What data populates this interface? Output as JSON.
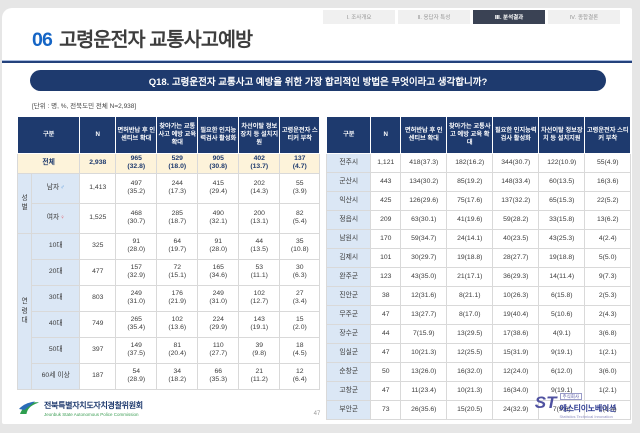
{
  "nav": {
    "items": [
      {
        "label": "Ⅰ. 조사개요",
        "active": false
      },
      {
        "label": "Ⅱ. 응답자 특성",
        "active": false
      },
      {
        "label": "Ⅲ. 분석결과",
        "active": true
      },
      {
        "label": "Ⅳ. 종합결론",
        "active": false
      }
    ]
  },
  "header": {
    "section_number": "06",
    "title": "고령운전자 교통사고예방"
  },
  "question": "Q18. 고령운전자 교통사고 예방을 위한 가장 합리적인 방법은 무엇이라고 생각합니까?",
  "unit_note": "[단위 : 명, %, 전북도민 전체 N=2,938]",
  "columns": {
    "category": "구분",
    "n": "N",
    "options": [
      "면허반납 후 인센티브 확대",
      "찾아가는 교통사고 예방 교육 확대",
      "필요한 인지능력검사 활성화",
      "차선이탈 정보장치 등 설치지원",
      "고령운전자 스티커 부착"
    ]
  },
  "left_table": {
    "total": {
      "label": "전체",
      "n": "2,938",
      "cells": [
        [
          "965",
          "(32.8)"
        ],
        [
          "529",
          "(18.0)"
        ],
        [
          "905",
          "(30.8)"
        ],
        [
          "402",
          "(13.7)"
        ],
        [
          "137",
          "(4.7)"
        ]
      ]
    },
    "groups": [
      {
        "label": "성별",
        "rows": [
          {
            "label": "남자",
            "icon": "♂",
            "icon_color": "#4a90d9",
            "n": "1,413",
            "cells": [
              [
                "497",
                "(35.2)"
              ],
              [
                "244",
                "(17.3)"
              ],
              [
                "415",
                "(29.4)"
              ],
              [
                "202",
                "(14.3)"
              ],
              [
                "55",
                "(3.9)"
              ]
            ]
          },
          {
            "label": "여자",
            "icon": "♀",
            "icon_color": "#e05560",
            "n": "1,525",
            "cells": [
              [
                "468",
                "(30.7)"
              ],
              [
                "285",
                "(18.7)"
              ],
              [
                "490",
                "(32.1)"
              ],
              [
                "200",
                "(13.1)"
              ],
              [
                "82",
                "(5.4)"
              ]
            ]
          }
        ]
      },
      {
        "label": "연령대",
        "rows": [
          {
            "label": "10대",
            "n": "325",
            "cells": [
              [
                "91",
                "(28.0)"
              ],
              [
                "64",
                "(19.7)"
              ],
              [
                "91",
                "(28.0)"
              ],
              [
                "44",
                "(13.5)"
              ],
              [
                "35",
                "(10.8)"
              ]
            ]
          },
          {
            "label": "20대",
            "n": "477",
            "cells": [
              [
                "157",
                "(32.9)"
              ],
              [
                "72",
                "(15.1)"
              ],
              [
                "165",
                "(34.6)"
              ],
              [
                "53",
                "(11.1)"
              ],
              [
                "30",
                "(6.3)"
              ]
            ]
          },
          {
            "label": "30대",
            "n": "803",
            "cells": [
              [
                "249",
                "(31.0)"
              ],
              [
                "176",
                "(21.9)"
              ],
              [
                "249",
                "(31.0)"
              ],
              [
                "102",
                "(12.7)"
              ],
              [
                "27",
                "(3.4)"
              ]
            ]
          },
          {
            "label": "40대",
            "n": "749",
            "cells": [
              [
                "265",
                "(35.4)"
              ],
              [
                "102",
                "(13.6)"
              ],
              [
                "224",
                "(29.9)"
              ],
              [
                "143",
                "(19.1)"
              ],
              [
                "15",
                "(2.0)"
              ]
            ]
          },
          {
            "label": "50대",
            "n": "397",
            "cells": [
              [
                "149",
                "(37.5)"
              ],
              [
                "81",
                "(20.4)"
              ],
              [
                "110",
                "(27.7)"
              ],
              [
                "39",
                "(9.8)"
              ],
              [
                "18",
                "(4.5)"
              ]
            ]
          },
          {
            "label": "60세 이상",
            "n": "187",
            "cells": [
              [
                "54",
                "(28.9)"
              ],
              [
                "34",
                "(18.2)"
              ],
              [
                "66",
                "(35.3)"
              ],
              [
                "21",
                "(11.2)"
              ],
              [
                "12",
                "(6.4)"
              ]
            ]
          }
        ]
      }
    ]
  },
  "right_table": {
    "rows": [
      {
        "label": "전주시",
        "n": "1,121",
        "cells": [
          "418(37.3)",
          "182(16.2)",
          "344(30.7)",
          "122(10.9)",
          "55(4.9)"
        ]
      },
      {
        "label": "군산시",
        "n": "443",
        "cells": [
          "134(30.2)",
          "85(19.2)",
          "148(33.4)",
          "60(13.5)",
          "16(3.6)"
        ]
      },
      {
        "label": "익산시",
        "n": "425",
        "cells": [
          "126(29.6)",
          "75(17.6)",
          "137(32.2)",
          "65(15.3)",
          "22(5.2)"
        ]
      },
      {
        "label": "정읍시",
        "n": "209",
        "cells": [
          "63(30.1)",
          "41(19.6)",
          "59(28.2)",
          "33(15.8)",
          "13(6.2)"
        ]
      },
      {
        "label": "남원시",
        "n": "170",
        "cells": [
          "59(34.7)",
          "24(14.1)",
          "40(23.5)",
          "43(25.3)",
          "4(2.4)"
        ]
      },
      {
        "label": "김제시",
        "n": "101",
        "cells": [
          "30(29.7)",
          "19(18.8)",
          "28(27.7)",
          "19(18.8)",
          "5(5.0)"
        ]
      },
      {
        "label": "완주군",
        "n": "123",
        "cells": [
          "43(35.0)",
          "21(17.1)",
          "36(29.3)",
          "14(11.4)",
          "9(7.3)"
        ]
      },
      {
        "label": "진안군",
        "n": "38",
        "cells": [
          "12(31.6)",
          "8(21.1)",
          "10(26.3)",
          "6(15.8)",
          "2(5.3)"
        ]
      },
      {
        "label": "무주군",
        "n": "47",
        "cells": [
          "13(27.7)",
          "8(17.0)",
          "19(40.4)",
          "5(10.6)",
          "2(4.3)"
        ]
      },
      {
        "label": "장수군",
        "n": "44",
        "cells": [
          "7(15.9)",
          "13(29.5)",
          "17(38.6)",
          "4(9.1)",
          "3(6.8)"
        ]
      },
      {
        "label": "임실군",
        "n": "47",
        "cells": [
          "10(21.3)",
          "12(25.5)",
          "15(31.9)",
          "9(19.1)",
          "1(2.1)"
        ]
      },
      {
        "label": "순창군",
        "n": "50",
        "cells": [
          "13(26.0)",
          "16(32.0)",
          "12(24.0)",
          "6(12.0)",
          "3(6.0)"
        ]
      },
      {
        "label": "고창군",
        "n": "47",
        "cells": [
          "11(23.4)",
          "10(21.3)",
          "16(34.0)",
          "9(19.1)",
          "1(2.1)"
        ]
      },
      {
        "label": "부안군",
        "n": "73",
        "cells": [
          "26(35.6)",
          "15(20.5)",
          "24(32.9)",
          "7(9.6)",
          "1(1.4)"
        ]
      }
    ]
  },
  "footer": {
    "left_logo": {
      "korean": "전북특별자치도자치경찰위원회",
      "english": "Jeonbuk State Autonomous Police Commission"
    },
    "right_logo": {
      "mark": "ST",
      "company_type": "주식회사",
      "korean": "에스티이노베이션",
      "english": "Statistics Technical Innovation"
    },
    "page_number": "47"
  },
  "colors": {
    "navy": "#1e3a6e",
    "accent_blue": "#1565c5",
    "cream": "#fdf3da",
    "light_blue": "#dbe7f5",
    "active_tab": "#3a4254"
  }
}
